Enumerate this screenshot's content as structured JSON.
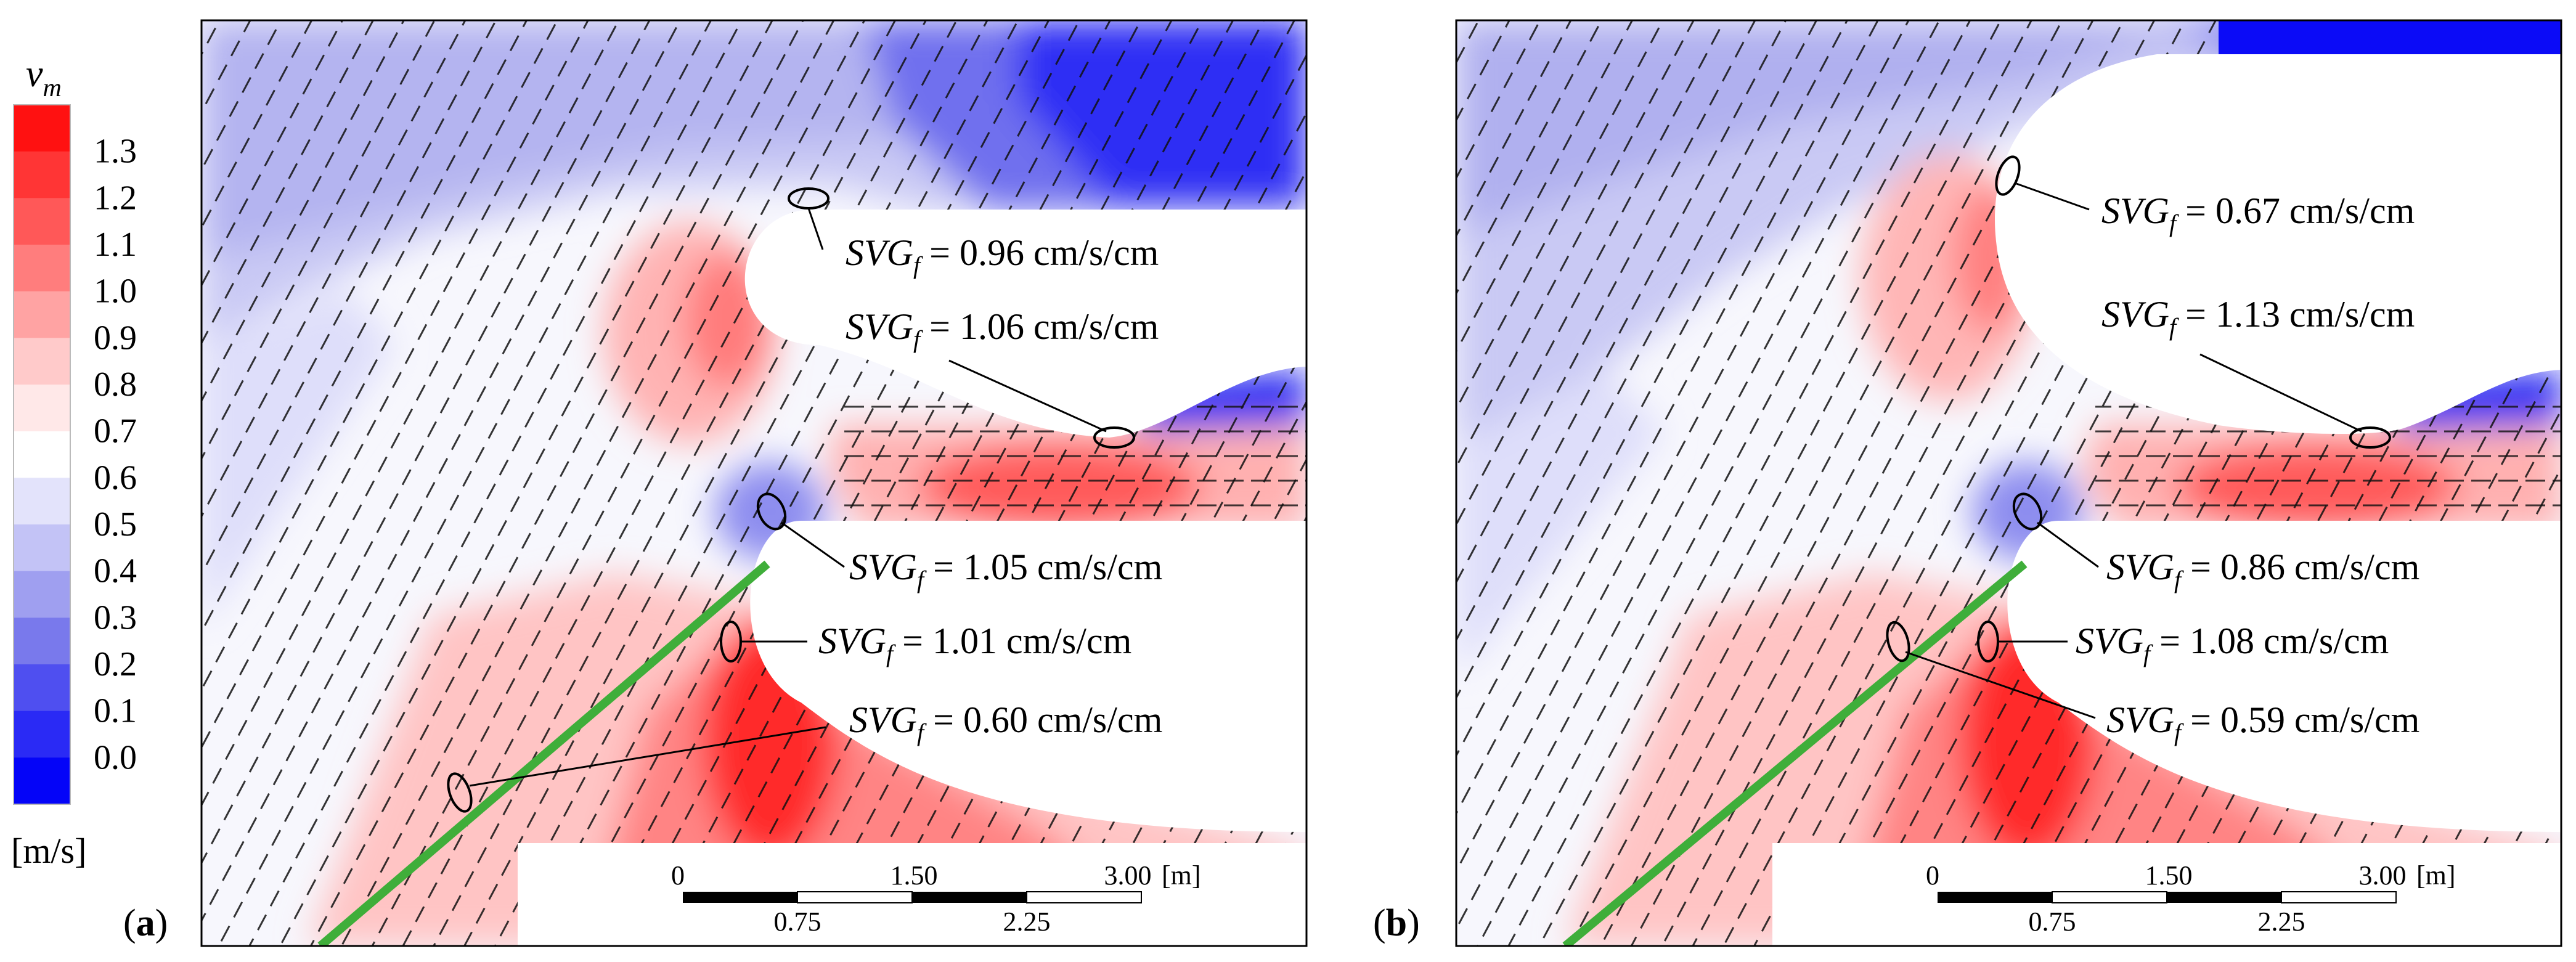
{
  "legend": {
    "symbol": "v",
    "symbol_sub": "m",
    "unit": "[m/s]",
    "ticks": [
      "1.3",
      "1.2",
      "1.1",
      "1.0",
      "0.9",
      "0.8",
      "0.7",
      "0.6",
      "0.5",
      "0.4",
      "0.3",
      "0.2",
      "0.1",
      "0.0"
    ],
    "colors": [
      "#ff1111",
      "#ff3535",
      "#ff5858",
      "#ff7d7d",
      "#ffa3a3",
      "#ffcaca",
      "#ffe8e8",
      "#ffffff",
      "#e3e3fb",
      "#c3c3f6",
      "#9f9ff0",
      "#7979ec",
      "#4f4ff0",
      "#2a2af5",
      "#0404f8"
    ]
  },
  "panel_a": {
    "label_open": "(",
    "label_letter": "a",
    "label_close": ")",
    "annotations": [
      {
        "prefix": "SVG",
        "sub": "f",
        "text": " = 0.96 cm/s/cm"
      },
      {
        "prefix": "SVG",
        "sub": "f",
        "text": " = 1.06 cm/s/cm"
      },
      {
        "prefix": "SVG",
        "sub": "f",
        "text": " = 1.05 cm/s/cm"
      },
      {
        "prefix": "SVG",
        "sub": "f",
        "text": " = 1.01 cm/s/cm"
      },
      {
        "prefix": "SVG",
        "sub": "f",
        "text": " = 0.60 cm/s/cm"
      }
    ]
  },
  "panel_b": {
    "label_open": "(",
    "label_letter": "b",
    "label_close": ")",
    "annotations": [
      {
        "prefix": "SVG",
        "sub": "f",
        "text": " = 0.67 cm/s/cm"
      },
      {
        "prefix": "SVG",
        "sub": "f",
        "text": " = 1.13 cm/s/cm"
      },
      {
        "prefix": "SVG",
        "sub": "f",
        "text": " = 0.86 cm/s/cm"
      },
      {
        "prefix": "SVG",
        "sub": "f",
        "text": " = 1.08 cm/s/cm"
      },
      {
        "prefix": "SVG",
        "sub": "f",
        "text": " = 0.59 cm/s/cm"
      }
    ]
  },
  "scalebar": {
    "top_ticks": [
      "0",
      "1.50",
      "3.00"
    ],
    "unit": "[m]",
    "bottom_ticks": [
      "0.75",
      "2.25"
    ]
  },
  "colors": {
    "inlet_line": "#3fae3a",
    "island": "#ffffff"
  }
}
